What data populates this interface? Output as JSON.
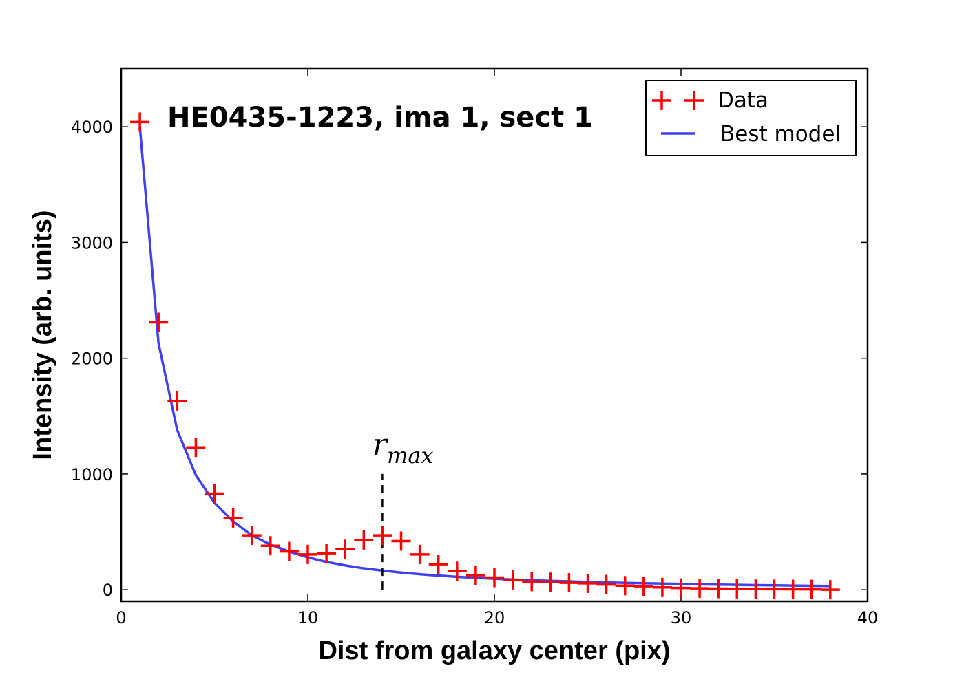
{
  "chart_data": {
    "type": "scatter",
    "title": "HE0435-1223, ima 1, sect 1",
    "xlabel": "Dist from galaxy center (pix)",
    "ylabel": "Intensity (arb. units)",
    "xlim": [
      0,
      40
    ],
    "ylim": [
      -100,
      4500
    ],
    "xticks": [
      0,
      10,
      20,
      30,
      40
    ],
    "yticks": [
      0,
      1000,
      2000,
      3000,
      4000
    ],
    "grid": false,
    "legend_position": "top-right",
    "colors": {
      "data": "#ff0000",
      "model": "#4040ee",
      "frame": "#000000"
    },
    "series": [
      {
        "name": "Data",
        "style": "plus-markers",
        "x": [
          1,
          2,
          3,
          4,
          5,
          6,
          7,
          8,
          9,
          10,
          11,
          12,
          13,
          14,
          15,
          16,
          17,
          18,
          19,
          20,
          21,
          22,
          23,
          24,
          25,
          26,
          27,
          28,
          29,
          30,
          31,
          32,
          33,
          34,
          35,
          36,
          37,
          38
        ],
        "y": [
          4040,
          2310,
          1630,
          1230,
          830,
          620,
          470,
          380,
          330,
          305,
          315,
          350,
          430,
          470,
          420,
          305,
          220,
          160,
          125,
          105,
          85,
          70,
          65,
          60,
          55,
          45,
          35,
          30,
          20,
          15,
          12,
          10,
          8,
          6,
          5,
          4,
          3,
          0
        ]
      },
      {
        "name": "Best model",
        "style": "line",
        "x": [
          1,
          2,
          3,
          4,
          5,
          6,
          7,
          8,
          9,
          10,
          11,
          12,
          13,
          14,
          15,
          16,
          17,
          18,
          19,
          20,
          21,
          22,
          23,
          24,
          25,
          26,
          27,
          28,
          29,
          30,
          31,
          32,
          33,
          34,
          35,
          36,
          37,
          38
        ],
        "y": [
          4000,
          2130,
          1380,
          990,
          750,
          590,
          470,
          390,
          330,
          280,
          240,
          210,
          185,
          165,
          148,
          134,
          122,
          112,
          103,
          95,
          88,
          82,
          77,
          72,
          67,
          63,
          59,
          56,
          53,
          50,
          47,
          44,
          42,
          40,
          38,
          36,
          34,
          32
        ]
      }
    ],
    "annotation": {
      "symbol": "r",
      "subscript": "max",
      "x": 14,
      "y_from": 0,
      "y_to": 1000
    }
  }
}
